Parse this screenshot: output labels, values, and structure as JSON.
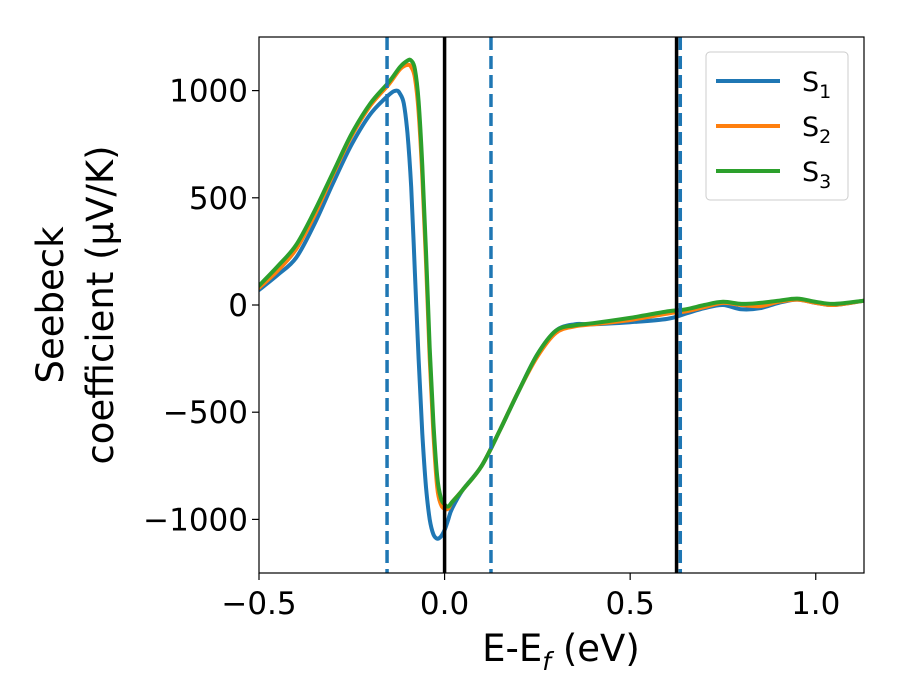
{
  "chart_data": {
    "type": "line",
    "xlabel": "E-E",
    "xlabel_sub": "f",
    "xlabel_unit": " (eV)",
    "ylabel_line1": "Seebeck",
    "ylabel_line2": "coefficient  (μV/K)",
    "xlim": [
      -0.5,
      1.13
    ],
    "ylim": [
      -1250,
      1250
    ],
    "xticks": [
      -0.5,
      0.0,
      0.5,
      1.0
    ],
    "xtick_labels": [
      "−0.5",
      "0.0",
      "0.5",
      "1.0"
    ],
    "yticks": [
      -1000,
      -500,
      0,
      500,
      1000
    ],
    "ytick_labels": [
      "−1000",
      "−500",
      "0",
      "500",
      "1000"
    ],
    "grid": false,
    "legend_position": "top-right",
    "vlines": [
      {
        "x": -0.155,
        "style": "dashed",
        "color": "#1f77b4"
      },
      {
        "x": 0.0,
        "style": "solid",
        "color": "#000000"
      },
      {
        "x": 0.125,
        "style": "dashed",
        "color": "#1f77b4"
      },
      {
        "x": 0.625,
        "style": "solid",
        "color": "#000000"
      },
      {
        "x": 0.635,
        "style": "dashed",
        "color": "#1f77b4"
      }
    ],
    "series": [
      {
        "name": "S",
        "sub": "1",
        "color": "#1f77b4",
        "x": [
          -0.5,
          -0.45,
          -0.4,
          -0.35,
          -0.3,
          -0.25,
          -0.2,
          -0.15,
          -0.13,
          -0.12,
          -0.11,
          -0.1,
          -0.09,
          -0.08,
          -0.07,
          -0.06,
          -0.05,
          -0.04,
          -0.03,
          -0.02,
          -0.01,
          0.0,
          0.01,
          0.02,
          0.05,
          0.1,
          0.15,
          0.2,
          0.25,
          0.3,
          0.35,
          0.4,
          0.5,
          0.6,
          0.65,
          0.7,
          0.75,
          0.8,
          0.85,
          0.9,
          0.95,
          1.0,
          1.05,
          1.13
        ],
        "y": [
          70,
          140,
          220,
          380,
          570,
          750,
          890,
          980,
          1000,
          985,
          940,
          800,
          550,
          150,
          -250,
          -600,
          -850,
          -1000,
          -1070,
          -1090,
          -1080,
          -1050,
          -1000,
          -950,
          -860,
          -750,
          -580,
          -400,
          -230,
          -120,
          -90,
          -90,
          -80,
          -65,
          -40,
          -15,
          0,
          -20,
          -15,
          10,
          25,
          10,
          0,
          20
        ]
      },
      {
        "name": "S",
        "sub": "2",
        "color": "#ff7f0e",
        "x": [
          -0.5,
          -0.45,
          -0.4,
          -0.35,
          -0.3,
          -0.25,
          -0.2,
          -0.15,
          -0.12,
          -0.1,
          -0.09,
          -0.08,
          -0.07,
          -0.06,
          -0.05,
          -0.04,
          -0.03,
          -0.02,
          -0.01,
          0.0,
          0.01,
          0.02,
          0.05,
          0.1,
          0.15,
          0.2,
          0.25,
          0.3,
          0.35,
          0.4,
          0.5,
          0.6,
          0.65,
          0.7,
          0.75,
          0.8,
          0.85,
          0.9,
          0.95,
          1.0,
          1.05,
          1.13
        ],
        "y": [
          80,
          160,
          260,
          420,
          610,
          790,
          930,
          1030,
          1100,
          1120,
          1110,
          1060,
          900,
          600,
          200,
          -250,
          -600,
          -850,
          -930,
          -950,
          -950,
          -920,
          -860,
          -750,
          -580,
          -400,
          -240,
          -130,
          -100,
          -90,
          -70,
          -40,
          -30,
          -10,
          10,
          0,
          -5,
          15,
          25,
          10,
          0,
          20
        ]
      },
      {
        "name": "S",
        "sub": "3",
        "color": "#2ca02c",
        "x": [
          -0.5,
          -0.45,
          -0.4,
          -0.35,
          -0.3,
          -0.25,
          -0.2,
          -0.15,
          -0.12,
          -0.1,
          -0.09,
          -0.08,
          -0.07,
          -0.06,
          -0.05,
          -0.04,
          -0.03,
          -0.02,
          -0.01,
          0.0,
          0.01,
          0.02,
          0.05,
          0.1,
          0.15,
          0.2,
          0.25,
          0.3,
          0.35,
          0.4,
          0.5,
          0.6,
          0.65,
          0.7,
          0.75,
          0.8,
          0.85,
          0.9,
          0.95,
          1.0,
          1.05,
          1.13
        ],
        "y": [
          90,
          180,
          280,
          440,
          620,
          800,
          940,
          1040,
          1110,
          1140,
          1140,
          1100,
          950,
          650,
          250,
          -200,
          -550,
          -800,
          -900,
          -930,
          -940,
          -920,
          -860,
          -750,
          -580,
          -400,
          -230,
          -120,
          -95,
          -85,
          -60,
          -30,
          -20,
          0,
          15,
          5,
          10,
          20,
          30,
          15,
          5,
          20
        ]
      }
    ]
  }
}
